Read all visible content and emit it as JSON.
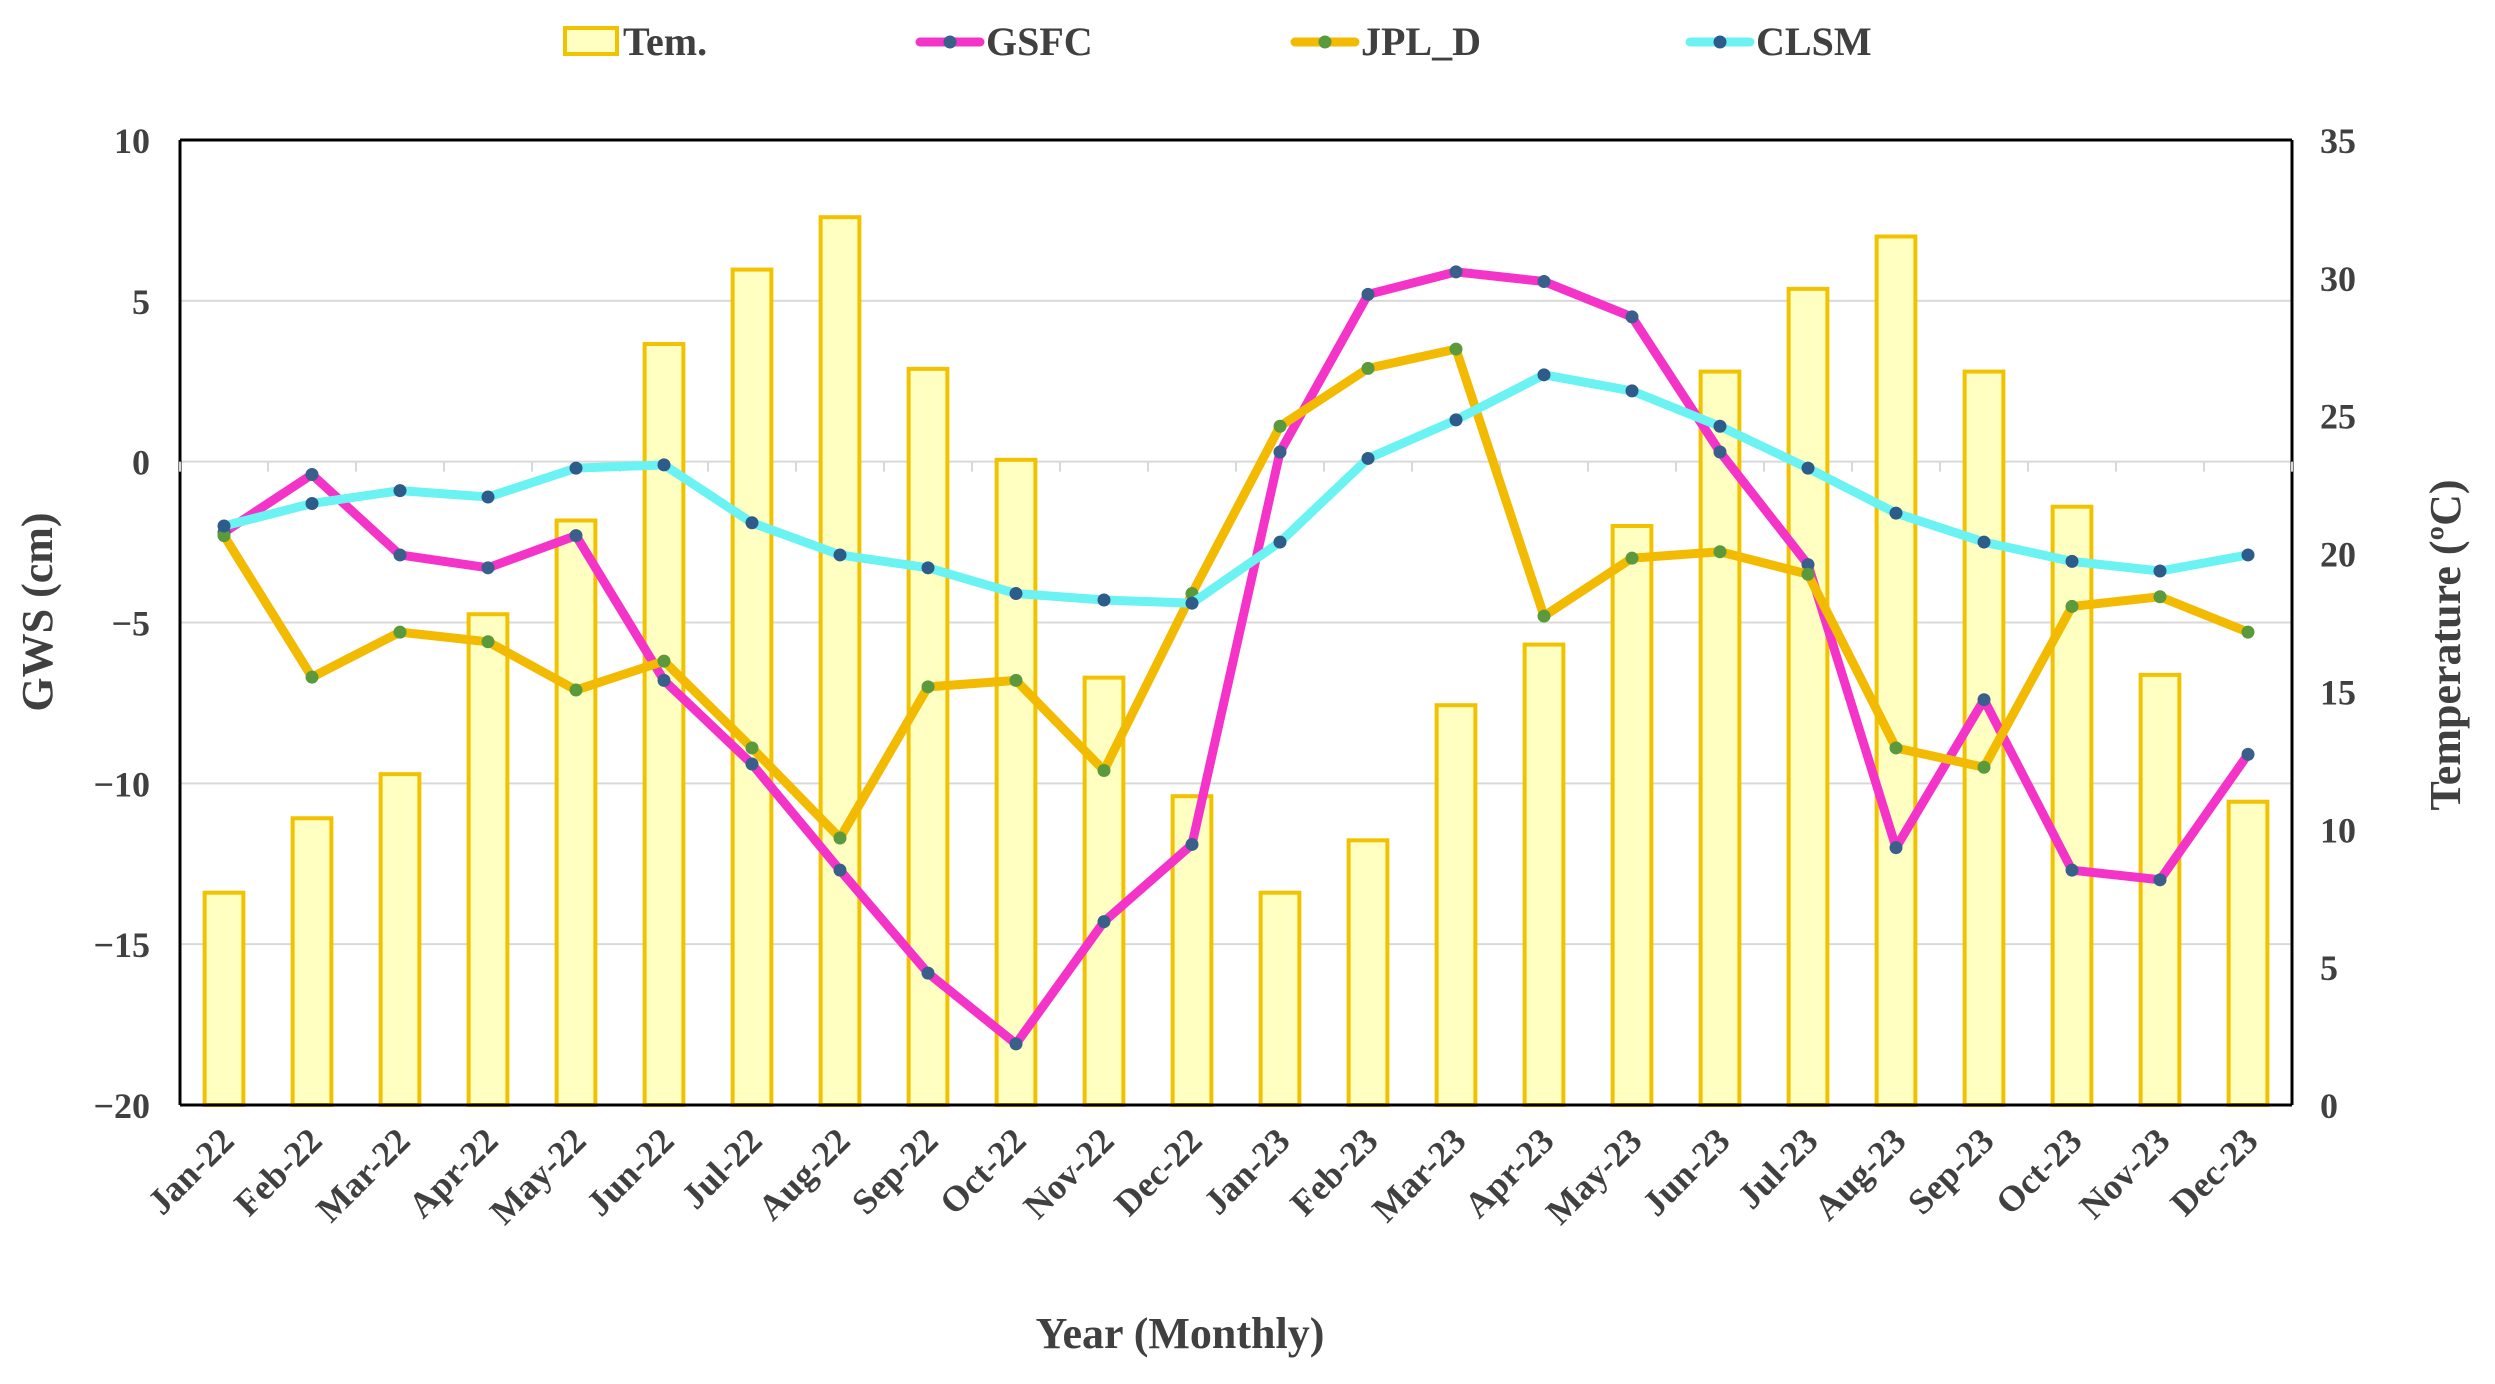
{
  "chart_data": {
    "type": "bar+line",
    "categories": [
      "Jan-22",
      "Feb-22",
      "Mar-22",
      "Apr-22",
      "May-22",
      "Jun-22",
      "Jul-22",
      "Aug-22",
      "Sep-22",
      "Oct-22",
      "Nov-22",
      "Dec-22",
      "Jan-23",
      "Feb-23",
      "Mar-23",
      "Apr-23",
      "May-23",
      "Jun-23",
      "Jul-23",
      "Aug-23",
      "Sep-23",
      "Oct-23",
      "Nov-23",
      "Dec-23"
    ],
    "xlabel": "Year (Monthly)",
    "ylabel": "GWS (cm)",
    "y2label": "Temperature (ºC)",
    "ylim": [
      -20,
      10
    ],
    "y2lim": [
      0,
      35
    ],
    "yticks": [
      -20,
      -15,
      -10,
      -5,
      0,
      5,
      10
    ],
    "y2ticks": [
      0,
      5,
      10,
      15,
      20,
      25,
      30,
      35
    ],
    "ytick_labels": [
      "−20",
      "−15",
      "−10",
      "−5",
      "0",
      "5",
      "10"
    ],
    "grid": true,
    "legend_position": "top",
    "bars": {
      "name": "Tem.",
      "axis": "right",
      "fill": "#FFFFC2",
      "stroke": "#F2C100",
      "values": [
        7.7,
        10.4,
        12.0,
        17.8,
        21.2,
        27.6,
        30.3,
        32.2,
        26.7,
        23.4,
        15.5,
        11.2,
        7.7,
        9.6,
        14.5,
        16.7,
        21.0,
        26.6,
        29.6,
        31.5,
        26.6,
        21.7,
        15.6,
        11.0
      ]
    },
    "series": [
      {
        "name": "GSFC",
        "axis": "left",
        "color": "#F433C8",
        "marker": "#3A5F8A",
        "values": [
          -2.2,
          -0.4,
          -2.9,
          -3.3,
          -2.3,
          -6.8,
          -9.4,
          -12.7,
          -15.9,
          -18.1,
          -14.3,
          -11.9,
          0.3,
          5.2,
          5.9,
          5.6,
          4.5,
          0.3,
          -3.2,
          -12.0,
          -7.4,
          -12.7,
          -13.0,
          -9.1
        ]
      },
      {
        "name": "JPL_D",
        "axis": "left",
        "color": "#F2BA00",
        "marker": "#5B9A3C",
        "values": [
          -2.3,
          -6.7,
          -5.3,
          -5.6,
          -7.1,
          -6.2,
          -8.9,
          -11.7,
          -7.0,
          -6.8,
          -9.6,
          -4.1,
          1.1,
          2.9,
          3.5,
          -4.8,
          -3.0,
          -2.8,
          -3.5,
          -8.9,
          -9.5,
          -4.5,
          -4.2,
          -5.3
        ]
      },
      {
        "name": "CLSM",
        "axis": "left",
        "color": "#6BF2F2",
        "marker": "#2E5C8A",
        "values": [
          -2.0,
          -1.3,
          -0.9,
          -1.1,
          -0.2,
          -0.1,
          -1.9,
          -2.9,
          -3.3,
          -4.1,
          -4.3,
          -4.4,
          -2.5,
          0.1,
          1.3,
          2.7,
          2.2,
          1.1,
          -0.2,
          -1.6,
          -2.5,
          -3.1,
          -3.4,
          -2.9
        ]
      }
    ]
  }
}
